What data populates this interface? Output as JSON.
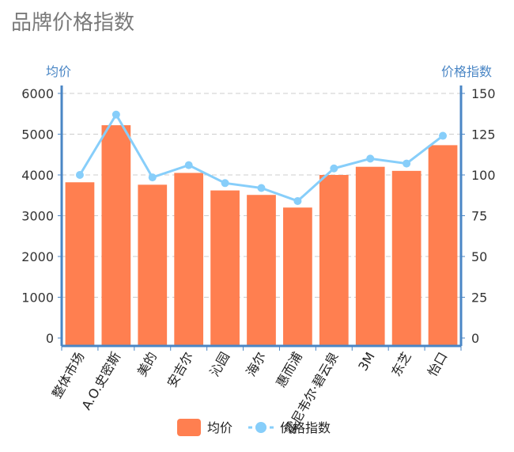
{
  "page": {
    "title": "品牌价格指数"
  },
  "chart_data": {
    "type": "bar",
    "title": "品牌价格指数",
    "categories": [
      "整体市场",
      "A.O.史密斯",
      "美的",
      "安吉尔",
      "沁园",
      "海尔",
      "惠而浦",
      "霍尼韦尔·碧云泉",
      "3M",
      "东芝",
      "怡口"
    ],
    "series": [
      {
        "name": "均价",
        "type": "bar",
        "axis": "left",
        "color": "#ff7f50",
        "values": [
          3820,
          5220,
          3760,
          4050,
          3620,
          3510,
          3200,
          4000,
          4200,
          4100,
          4730
        ]
      },
      {
        "name": "价格指数",
        "type": "line",
        "axis": "right",
        "color": "#87cefa",
        "values": [
          100,
          137,
          98.5,
          106,
          95,
          92,
          84,
          104,
          110,
          107,
          124
        ]
      }
    ],
    "y_left": {
      "label": "均价",
      "ticks": [
        0,
        1000,
        2000,
        3000,
        4000,
        5000,
        6000
      ],
      "ylim": [
        0,
        6000
      ]
    },
    "y_right": {
      "label": "价格指数",
      "ticks": [
        0,
        25,
        50,
        75,
        100,
        125,
        150
      ],
      "ylim": [
        0,
        150
      ]
    },
    "grid": "dashed horizontal",
    "legend": {
      "placement": "bottom",
      "items": [
        "均价",
        "价格指数"
      ]
    }
  }
}
